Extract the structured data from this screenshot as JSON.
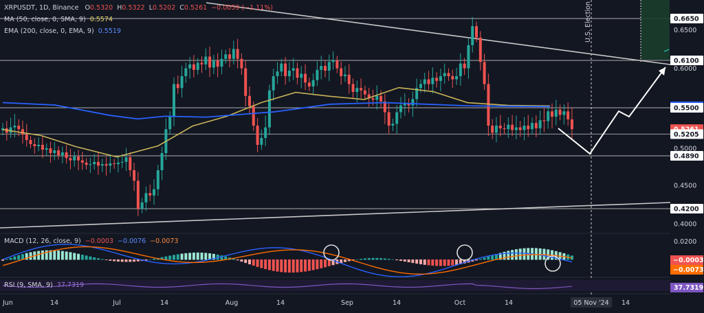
{
  "header": {
    "symbol": "XRPUSDT, 1D, Binance",
    "open_label": "O",
    "open": "0.5320",
    "high_label": "H",
    "high": "0.5322",
    "low_label": "L",
    "low": "0.5202",
    "close_label": "C",
    "close": "0.5261",
    "change": "−0.0059 (−1.11%)",
    "ma_label": "MA (50, close, 0, SMA, 9)",
    "ma_value": "0.5574",
    "ema_label": "EMA (200, close, 0, EMA, 9)",
    "ema_value": "0.5519",
    "macd_label": "MACD (12, 26, close, 9)",
    "macd_hist": "−0.0003",
    "macd_line": "−0.0076",
    "macd_signal": "−0.0073",
    "rsi_label": "RSI (9, SMA, 9)",
    "rsi_value": "37.7319"
  },
  "colors": {
    "background": "#131722",
    "bull": "#26a69a",
    "bear": "#ef5350",
    "ma": "#c9b458",
    "ema": "#2962ff",
    "macd_line": "#2962ff",
    "signal_line": "#ff6d00",
    "rsi": "#7e57c2",
    "text": "#d1d4dc",
    "levels": "#ffffff",
    "projection": "#ffffff"
  },
  "chart_data": {
    "type": "candlestick",
    "y_axis_ticks": [
      "0.6650",
      "0.6500",
      "0.6100",
      "0.6000",
      "0.5519",
      "0.5500",
      "0.5261",
      "0.5205",
      "0.5000",
      "0.4890",
      "0.4500",
      "0.4200",
      "0.4000"
    ],
    "price_levels": [
      0.665,
      0.61,
      0.55,
      0.5205,
      0.489,
      0.42
    ],
    "price_highlights": [
      {
        "label": "0.5519",
        "value": 0.5519,
        "color": "#2962ff"
      },
      {
        "label": "0.5261",
        "value": 0.5261,
        "color": "#ef5350"
      }
    ],
    "x_axis_labels": [
      "Jun",
      "14",
      "Jul",
      "14",
      "Aug",
      "14",
      "Sep",
      "14",
      "Oct",
      "14",
      "05 Nov '24",
      "14"
    ],
    "event_label": "U.S. Election",
    "event_date": "05 Nov '24",
    "macd_axis_ticks": [
      "0.0200",
      "−0.0003",
      "−0.0073"
    ],
    "rsi_axis_ticks": [
      "37.7319"
    ],
    "ma50_anchor_values": [
      0.5255,
      0.5185,
      0.5025,
      0.4875,
      0.5035,
      0.5295,
      0.5405,
      0.5565,
      0.5695,
      0.5645,
      0.5605,
      0.5755,
      0.5705,
      0.5565,
      0.553,
      0.5524
    ],
    "ema200_anchor_values": [
      0.5565,
      0.5535,
      0.5415,
      0.5375,
      0.5405,
      0.5395,
      0.5455,
      0.5545,
      0.5565,
      0.5525,
      0.5515
    ],
    "macd_values_note": "histogram alternates bearish/bullish across the period, ending slightly negative",
    "rsi_last": 37.7319
  }
}
